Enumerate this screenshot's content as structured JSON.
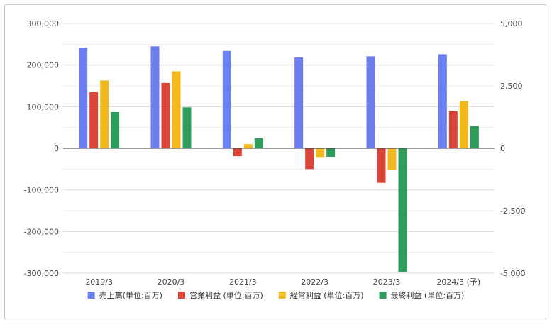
{
  "chart_data": {
    "type": "bar",
    "categories": [
      "2019/3",
      "2020/3",
      "2021/3",
      "2022/3",
      "2023/3",
      "2024/3 (予)"
    ],
    "series": [
      {
        "name": "売上高(単位:百万)",
        "axis": "left",
        "color": "#6b7ff0",
        "values": [
          242000,
          245000,
          234000,
          218000,
          221000,
          226000
        ]
      },
      {
        "name": "営業利益 (単位:百万)",
        "axis": "left",
        "color": "#db4437",
        "values": [
          135000,
          157000,
          -19000,
          -50000,
          -83000,
          89000
        ]
      },
      {
        "name": "経常利益 (単位:百万)",
        "axis": "left",
        "color": "#f1b91c",
        "values": [
          163000,
          185000,
          10000,
          -21000,
          -53000,
          113000
        ]
      },
      {
        "name": "最終利益 (単位:百万)",
        "axis": "right",
        "color": "#2e9d5a",
        "values": [
          1450,
          1640,
          400,
          -340,
          -4950,
          890
        ]
      }
    ],
    "y_left": {
      "ylim": [
        -300000,
        300000
      ],
      "ticks": [
        300000,
        200000,
        100000,
        0,
        -100000,
        -200000,
        -300000
      ],
      "tick_labels": [
        "300,000",
        "200,000",
        "100,000",
        "0",
        "-100,000",
        "-200,000",
        "-300,000"
      ]
    },
    "y_right": {
      "ylim": [
        -5000,
        5000
      ],
      "ticks": [
        5000,
        2500,
        0,
        -2500,
        -5000
      ],
      "tick_labels": [
        "5,000",
        "2,500",
        "0",
        "-2,500",
        "-5,000"
      ]
    },
    "grid": true,
    "legend_position": "bottom",
    "title": "",
    "xlabel": "",
    "ylabel": ""
  }
}
